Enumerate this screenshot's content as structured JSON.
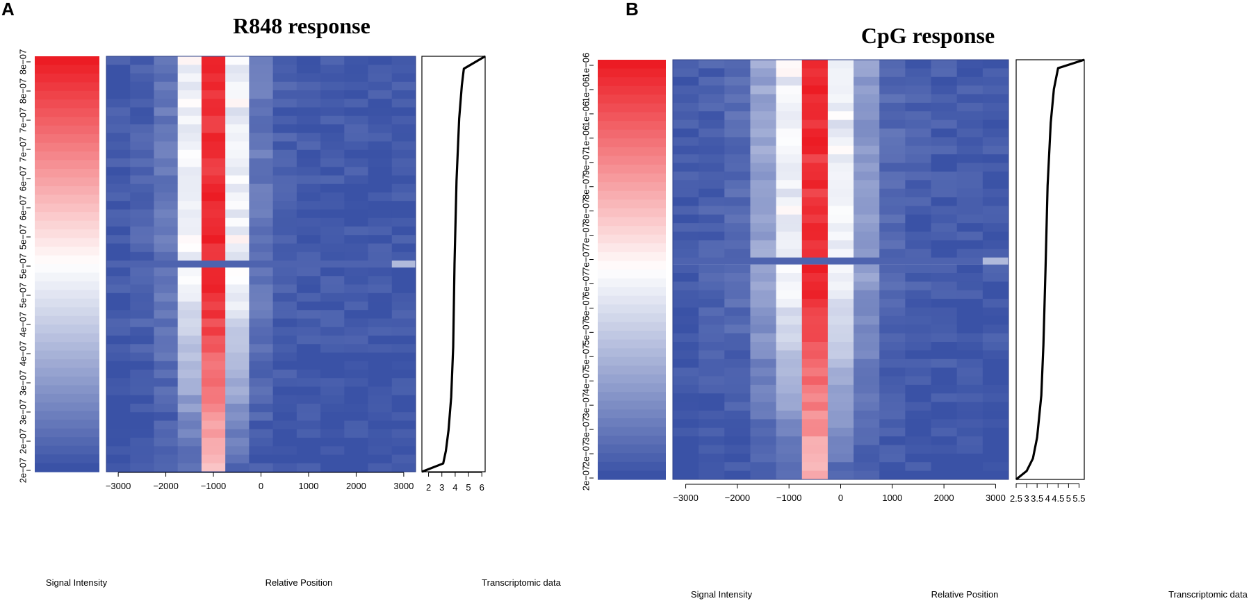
{
  "chart_data": [
    {
      "type": "heatmap",
      "panel_label": "A",
      "title": "R848 response",
      "colorscale": [
        "#3a52a6",
        "#ffffff",
        "#ec1c24"
      ],
      "legend": {
        "label": "Signal Intensity",
        "ticks": [
          "2e−07",
          "2e−07",
          "3e−07",
          "3e−07",
          "4e−07",
          "4e−07",
          "5e−07",
          "5e−07",
          "5e−07",
          "6e−07",
          "6e−07",
          "7e−07",
          "7e−07",
          "8e−07",
          "8e−07"
        ]
      },
      "heatmap": {
        "xlabel": "Relative Position",
        "xticks": [
          -3000,
          -2000,
          -1000,
          0,
          1000,
          2000,
          3000
        ],
        "xlim": [
          -3250,
          3250
        ],
        "bin_count": 13,
        "row_count": 48,
        "gap_after_row": 24,
        "central_bin_profile": [
          0.02,
          0.05,
          0.12,
          0.5,
          0.92,
          0.5,
          0.12,
          0.05,
          0.03,
          0.02,
          0.02,
          0.02,
          0.02
        ]
      },
      "line": {
        "xlabel": "Transcriptomic data",
        "xticks": [
          "2",
          "3",
          "4",
          "5",
          "6"
        ],
        "xlim": [
          1.5,
          6.25
        ],
        "x": [
          1.5,
          3.1,
          3.3,
          3.5,
          3.7,
          3.85,
          3.95,
          4.1,
          4.3,
          4.5,
          4.65,
          6.25
        ],
        "y": [
          0,
          0.02,
          0.05,
          0.1,
          0.18,
          0.3,
          0.5,
          0.7,
          0.85,
          0.93,
          0.97,
          1.0
        ]
      }
    },
    {
      "type": "heatmap",
      "panel_label": "B",
      "title": "CpG response",
      "colorscale": [
        "#3a52a6",
        "#ffffff",
        "#ec1c24"
      ],
      "legend": {
        "label": "Signal Intensity",
        "ticks": [
          "2e−07",
          "2e−07",
          "3e−07",
          "3e−07",
          "4e−07",
          "5e−07",
          "5e−07",
          "6e−07",
          "6e−07",
          "7e−07",
          "7e−07",
          "8e−07",
          "8e−07",
          "9e−07",
          "1e−06",
          "1e−06",
          "1e−06",
          "1e−06"
        ]
      },
      "heatmap": {
        "xlabel": "Relative Position",
        "xticks": [
          -3000,
          -2000,
          -1000,
          0,
          1000,
          2000,
          3000
        ],
        "xlim": [
          -3250,
          3250
        ],
        "bin_count": 13,
        "row_count": 48,
        "gap_after_row": 23,
        "central_bin_profile": [
          0.02,
          0.04,
          0.08,
          0.25,
          0.5,
          0.92,
          0.5,
          0.22,
          0.08,
          0.04,
          0.03,
          0.02,
          0.02
        ]
      },
      "line": {
        "xlabel": "Transcriptomic data",
        "xticks": [
          "2.5",
          "3",
          "3.5",
          "4",
          "4.5",
          "5",
          "5.5"
        ],
        "xlim": [
          2.5,
          5.75
        ],
        "x": [
          2.5,
          3.0,
          3.3,
          3.5,
          3.7,
          3.8,
          3.9,
          4.0,
          4.15,
          4.3,
          4.5,
          5.75
        ],
        "y": [
          0,
          0.02,
          0.05,
          0.1,
          0.2,
          0.32,
          0.5,
          0.7,
          0.85,
          0.93,
          0.98,
          1.0
        ]
      }
    }
  ]
}
